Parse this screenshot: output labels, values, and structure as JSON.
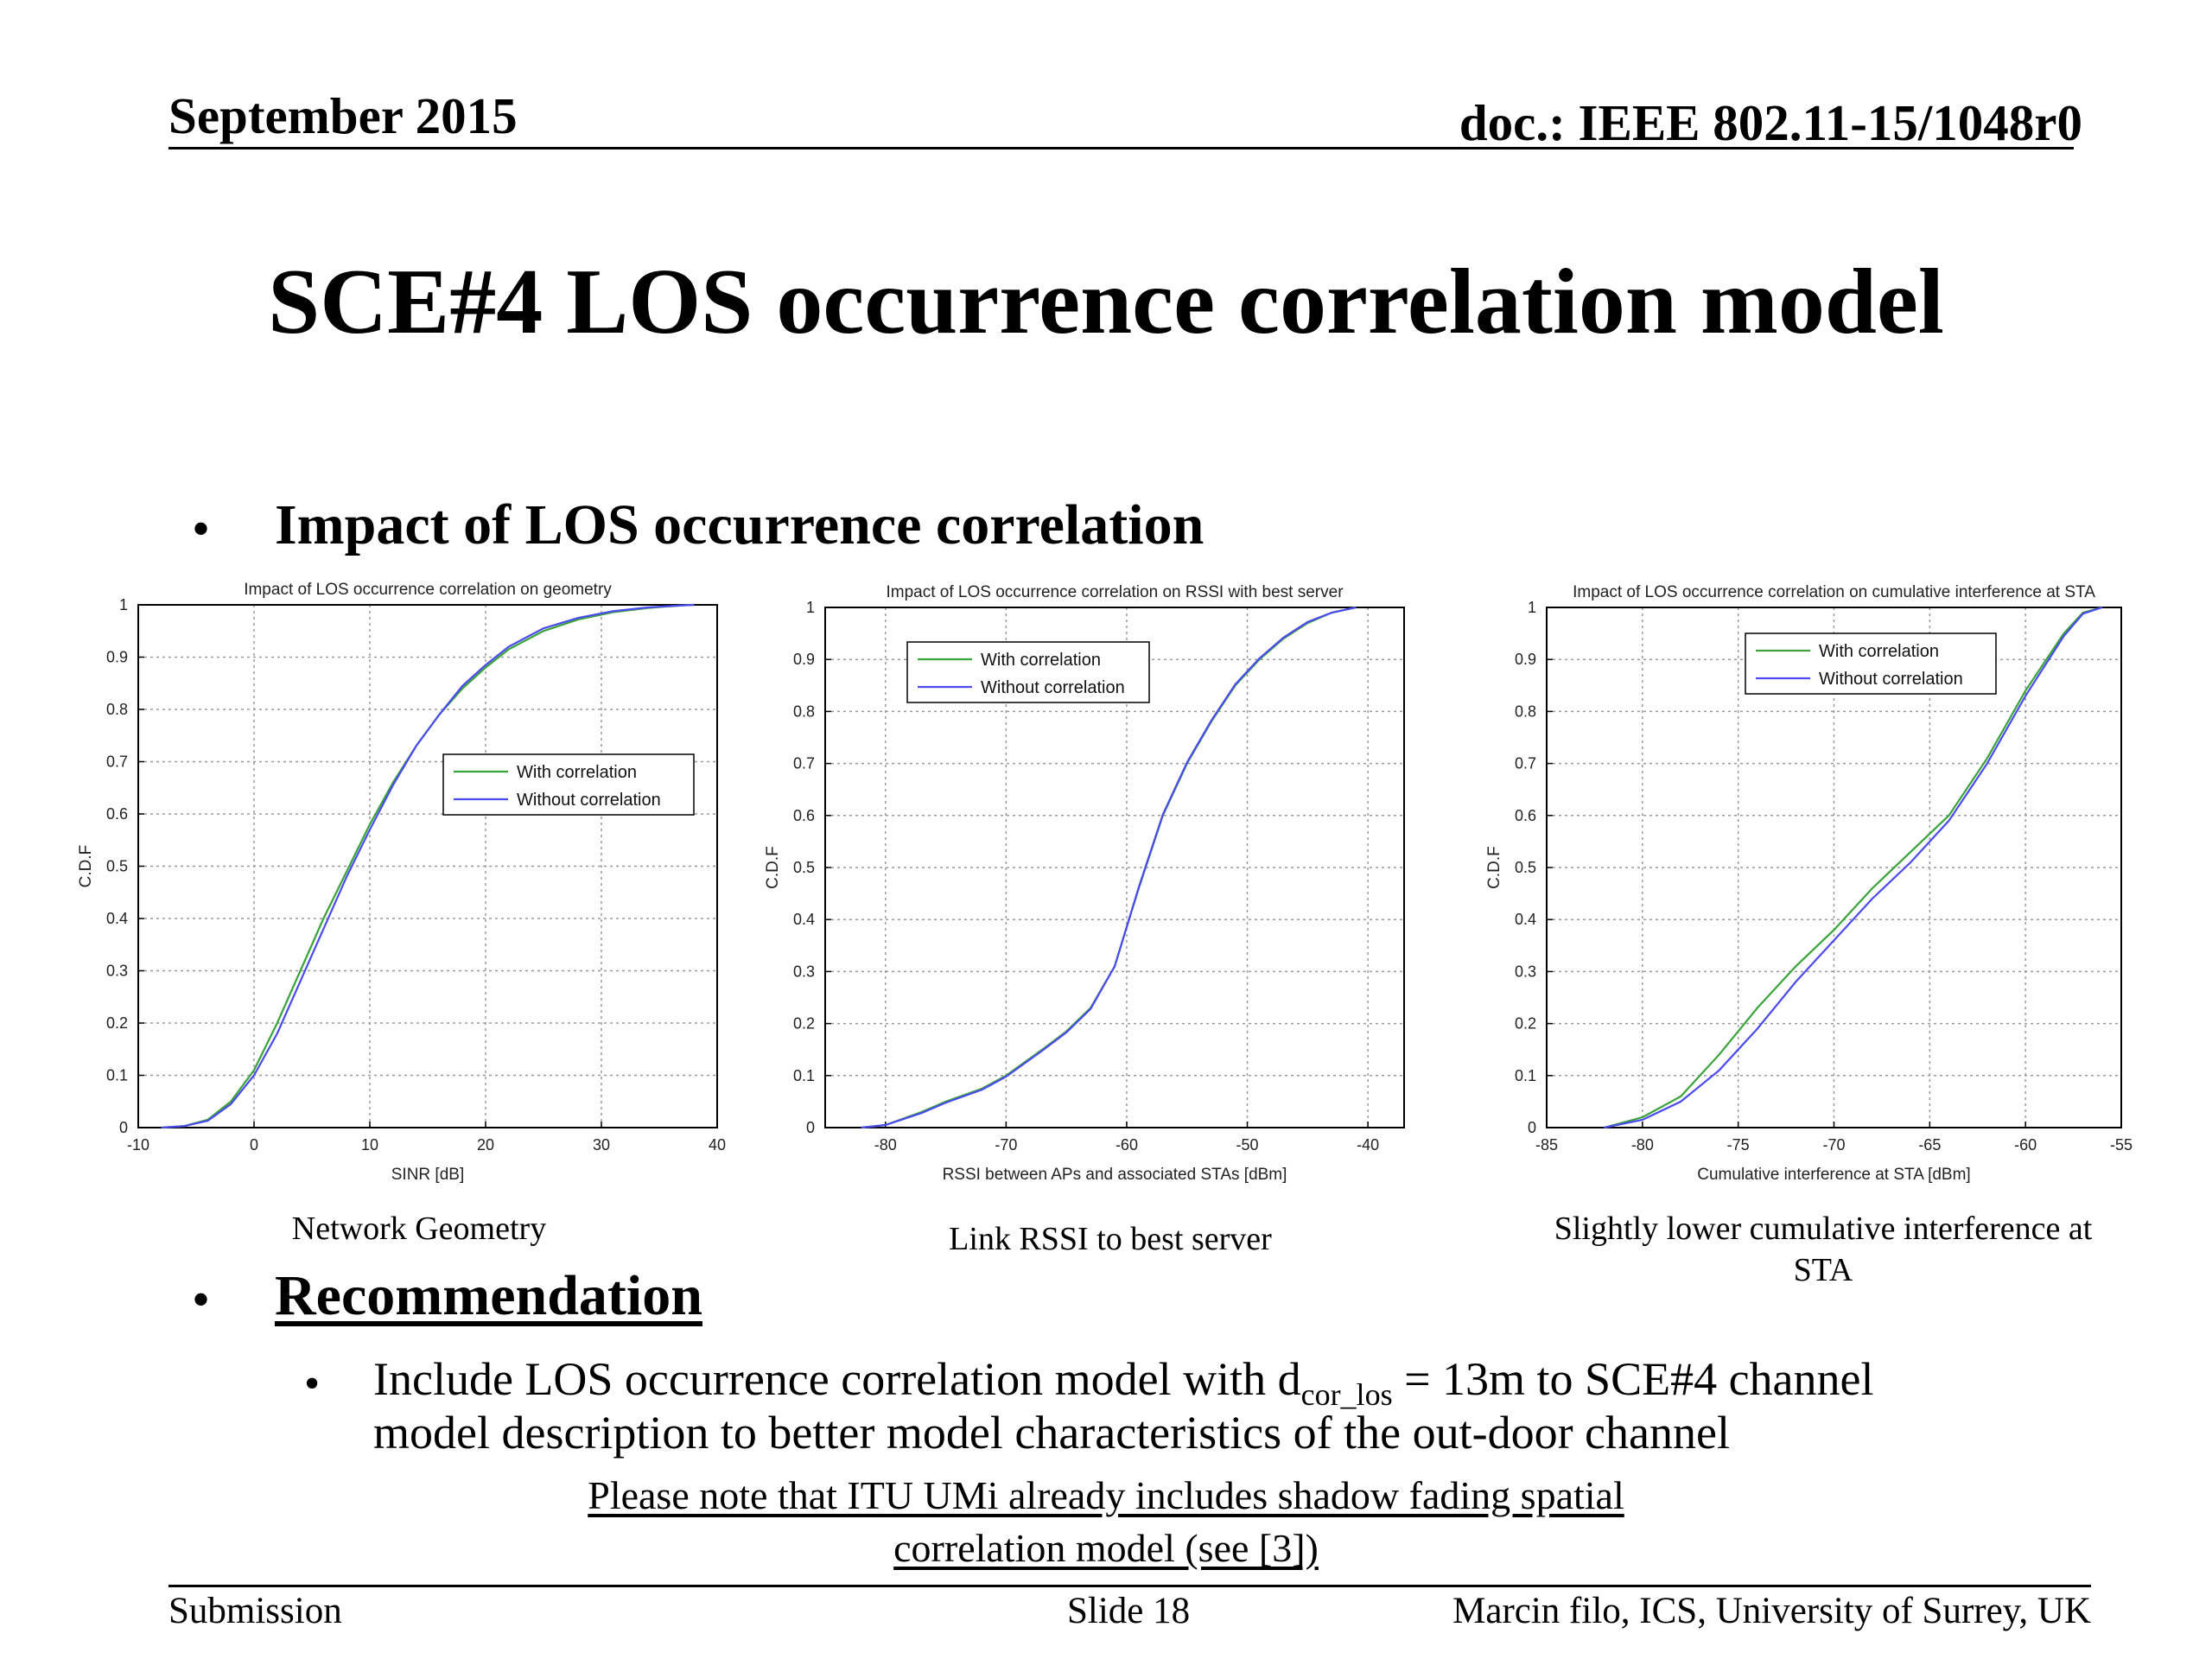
{
  "header": {
    "date": "September 2015",
    "doc": "doc.: IEEE 802.11-15/1048r0"
  },
  "title": "SCE#4 LOS occurrence correlation model",
  "bullets": {
    "impact": "Impact of LOS occurrence correlation",
    "recommendation": "Recommendation",
    "sub_pre": "Include LOS occurrence correlation model with d",
    "sub_subscript": "cor_los",
    "sub_post": " = 13m to SCE#4 channel",
    "sub_line2": "model description to better model characteristics of the out-door channel",
    "note_line1": "Please note that ITU UMi already includes shadow fading spatial",
    "note_line2": "correlation model (see [3])"
  },
  "captions": {
    "chart1": "Network Geometry",
    "chart2": "Link RSSI to best server",
    "chart3_line1": "Slightly lower cumulative interference at",
    "chart3_line2": "STA"
  },
  "footer": {
    "left": "Submission",
    "center": "Slide 18",
    "right": "Marcin filo, ICS, University of Surrey, UK"
  },
  "colors": {
    "with_correlation": "#3aa33a",
    "without_correlation": "#4a4af0",
    "grid": "#9a9a9a"
  },
  "chart_data": [
    {
      "type": "line",
      "title": "Impact of LOS occurrence correlation on geometry",
      "xlabel": "SINR [dB]",
      "ylabel": "C.D.F",
      "xlim": [
        -10,
        40
      ],
      "ylim": [
        0,
        1
      ],
      "xticks": [
        "-10",
        "0",
        "10",
        "20",
        "30",
        "40"
      ],
      "yticks": [
        "0",
        "0.1",
        "0.2",
        "0.3",
        "0.4",
        "0.5",
        "0.6",
        "0.7",
        "0.8",
        "0.9",
        "1"
      ],
      "grid": true,
      "legend": "right",
      "series": [
        {
          "name": "With correlation",
          "x": [
            -8,
            -6,
            -4,
            -2,
            0,
            2,
            4,
            6,
            8,
            10,
            12,
            14,
            16,
            18,
            20,
            22,
            25,
            28,
            31,
            34,
            37,
            38
          ],
          "y": [
            0,
            0.003,
            0.015,
            0.05,
            0.11,
            0.2,
            0.3,
            0.4,
            0.49,
            0.58,
            0.66,
            0.73,
            0.79,
            0.84,
            0.88,
            0.915,
            0.95,
            0.972,
            0.986,
            0.994,
            0.999,
            1
          ]
        },
        {
          "name": "Without correlation",
          "x": [
            -8,
            -6,
            -4,
            -2,
            0,
            2,
            4,
            6,
            8,
            10,
            12,
            14,
            16,
            18,
            20,
            22,
            25,
            28,
            31,
            34,
            37,
            38
          ],
          "y": [
            0,
            0.003,
            0.013,
            0.045,
            0.1,
            0.18,
            0.28,
            0.38,
            0.48,
            0.57,
            0.655,
            0.73,
            0.79,
            0.845,
            0.885,
            0.92,
            0.955,
            0.975,
            0.988,
            0.995,
            0.999,
            1
          ]
        }
      ]
    },
    {
      "type": "line",
      "title": "Impact of LOS occurrence correlation on RSSI with best server",
      "xlabel": "RSSI between APs and associated STAs [dBm]",
      "ylabel": "C.D.F",
      "xlim": [
        -85,
        -37
      ],
      "ylim": [
        0,
        1
      ],
      "xticks": [
        "-80",
        "-70",
        "-60",
        "-50",
        "-40"
      ],
      "yticks": [
        "0",
        "0.1",
        "0.2",
        "0.3",
        "0.4",
        "0.5",
        "0.6",
        "0.7",
        "0.8",
        "0.9",
        "1"
      ],
      "grid": true,
      "legend": "top-left",
      "series": [
        {
          "name": "With correlation",
          "x": [
            -82,
            -80,
            -77,
            -75,
            -72,
            -70,
            -67,
            -65,
            -63,
            -61,
            -59,
            -57,
            -55,
            -53,
            -51,
            -49,
            -47,
            -45,
            -43,
            -41
          ],
          "y": [
            0,
            0.005,
            0.03,
            0.05,
            0.075,
            0.1,
            0.15,
            0.185,
            0.23,
            0.31,
            0.46,
            0.6,
            0.7,
            0.78,
            0.85,
            0.9,
            0.94,
            0.97,
            0.99,
            1
          ]
        },
        {
          "name": "Without correlation",
          "x": [
            -82,
            -80,
            -77,
            -75,
            -72,
            -70,
            -67,
            -65,
            -63,
            -61,
            -59,
            -57,
            -55,
            -53,
            -51,
            -49,
            -47,
            -45,
            -43,
            -41
          ],
          "y": [
            0,
            0.005,
            0.028,
            0.048,
            0.073,
            0.098,
            0.148,
            0.183,
            0.228,
            0.31,
            0.462,
            0.602,
            0.702,
            0.782,
            0.852,
            0.902,
            0.942,
            0.972,
            0.99,
            1
          ]
        }
      ]
    },
    {
      "type": "line",
      "title": "Impact of LOS occurrence correlation on cumulative interference at STA",
      "xlabel": "Cumulative interference at STA [dBm]",
      "ylabel": "C.D.F",
      "xlim": [
        -85,
        -55
      ],
      "ylim": [
        0,
        1
      ],
      "xticks": [
        "-85",
        "-80",
        "-75",
        "-70",
        "-65",
        "-60",
        "-55"
      ],
      "yticks": [
        "0",
        "0.1",
        "0.2",
        "0.3",
        "0.4",
        "0.5",
        "0.6",
        "0.7",
        "0.8",
        "0.9",
        "1"
      ],
      "grid": true,
      "legend": "top",
      "series": [
        {
          "name": "With correlation",
          "x": [
            -82,
            -80,
            -78,
            -76,
            -74,
            -72,
            -70,
            -68,
            -66,
            -64,
            -62,
            -60,
            -58,
            -57,
            -56
          ],
          "y": [
            0,
            0.02,
            0.06,
            0.14,
            0.23,
            0.31,
            0.38,
            0.46,
            0.53,
            0.6,
            0.71,
            0.84,
            0.95,
            0.99,
            1
          ]
        },
        {
          "name": "Without correlation",
          "x": [
            -82,
            -80,
            -78,
            -76,
            -74,
            -72,
            -70,
            -68,
            -66,
            -64,
            -62,
            -60,
            -58,
            -57,
            -56
          ],
          "y": [
            0,
            0.015,
            0.05,
            0.11,
            0.19,
            0.28,
            0.36,
            0.44,
            0.51,
            0.59,
            0.7,
            0.83,
            0.945,
            0.988,
            1
          ]
        }
      ]
    }
  ]
}
